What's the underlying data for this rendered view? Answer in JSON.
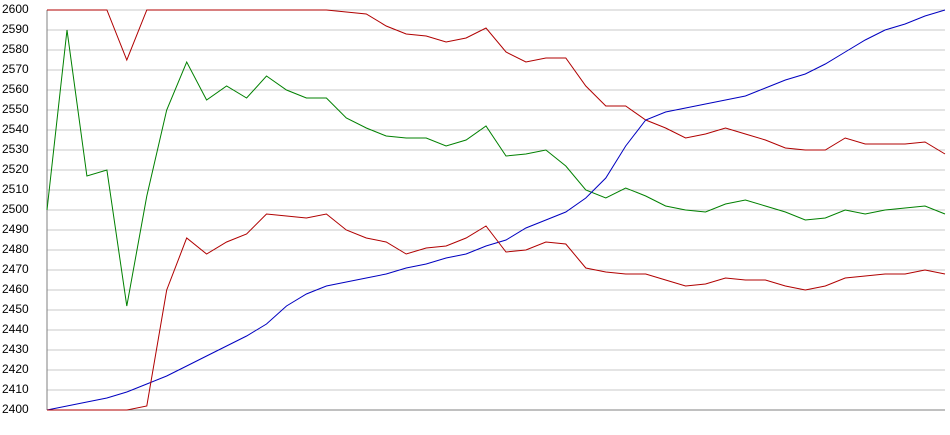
{
  "chart_data": {
    "type": "line",
    "categories": [
      null,
      null,
      null,
      null,
      null,
      null,
      null,
      null,
      null,
      null,
      null,
      null,
      null,
      null,
      null,
      null,
      null,
      null,
      null,
      null,
      null,
      null,
      null,
      null,
      null,
      null,
      null,
      null,
      null,
      null,
      null,
      null,
      null,
      null,
      null,
      null,
      null,
      null,
      null,
      null,
      null,
      null,
      null,
      null,
      null,
      null
    ],
    "series": [
      {
        "color": "#b00000",
        "values": [
          2600,
          2600,
          2600,
          2600,
          2575,
          2600,
          2600,
          2600,
          2600,
          2600,
          2600,
          2600,
          2600,
          2600,
          2600,
          2599,
          2598,
          2592,
          2588,
          2587,
          2584,
          2586,
          2591,
          2579,
          2574,
          2576,
          2576,
          2562,
          2552,
          2552,
          2545,
          2541,
          2536,
          2538,
          2541,
          2538,
          2535,
          2531,
          2530,
          2530,
          2536,
          2533,
          2533,
          2533,
          2534,
          2528
        ]
      },
      {
        "color": "#008000",
        "values": [
          2500,
          2590,
          2517,
          2520,
          2452,
          2507,
          2550,
          2574,
          2555,
          2562,
          2556,
          2567,
          2560,
          2556,
          2556,
          2546,
          2541,
          2537,
          2536,
          2536,
          2532,
          2535,
          2542,
          2527,
          2528,
          2530,
          2522,
          2510,
          2506,
          2511,
          2507,
          2502,
          2500,
          2499,
          2503,
          2505,
          2502,
          2499,
          2495,
          2496,
          2500,
          2498,
          2500,
          2501,
          2502,
          2498
        ]
      },
      {
        "color": "#0000c0",
        "values": [
          2400,
          2402,
          2404,
          2406,
          2409,
          2413,
          2417,
          2422,
          2427,
          2432,
          2437,
          2443,
          2452,
          2458,
          2462,
          2464,
          2466,
          2468,
          2471,
          2473,
          2476,
          2478,
          2482,
          2485,
          2491,
          2495,
          2499,
          2506,
          2516,
          2532,
          2545,
          2549,
          2551,
          2553,
          2555,
          2557,
          2561,
          2565,
          2568,
          2573,
          2579,
          2585,
          2590,
          2593,
          2597,
          2600
        ]
      },
      {
        "color": "#b00000",
        "values": [
          2400,
          2400,
          2400,
          2400,
          2400,
          2402,
          2460,
          2486,
          2478,
          2484,
          2488,
          2498,
          2497,
          2496,
          2498,
          2490,
          2486,
          2484,
          2478,
          2481,
          2482,
          2486,
          2492,
          2479,
          2480,
          2484,
          2483,
          2471,
          2469,
          2468,
          2468,
          2465,
          2462,
          2463,
          2466,
          2465,
          2465,
          2462,
          2460,
          2462,
          2466,
          2467,
          2468,
          2468,
          2470,
          2468
        ]
      }
    ],
    "ylim": [
      2400,
      2600
    ],
    "yticks": [
      2400,
      2410,
      2420,
      2430,
      2440,
      2450,
      2460,
      2470,
      2480,
      2490,
      2500,
      2510,
      2520,
      2530,
      2540,
      2550,
      2560,
      2570,
      2580,
      2590,
      2600
    ],
    "grid": true
  }
}
